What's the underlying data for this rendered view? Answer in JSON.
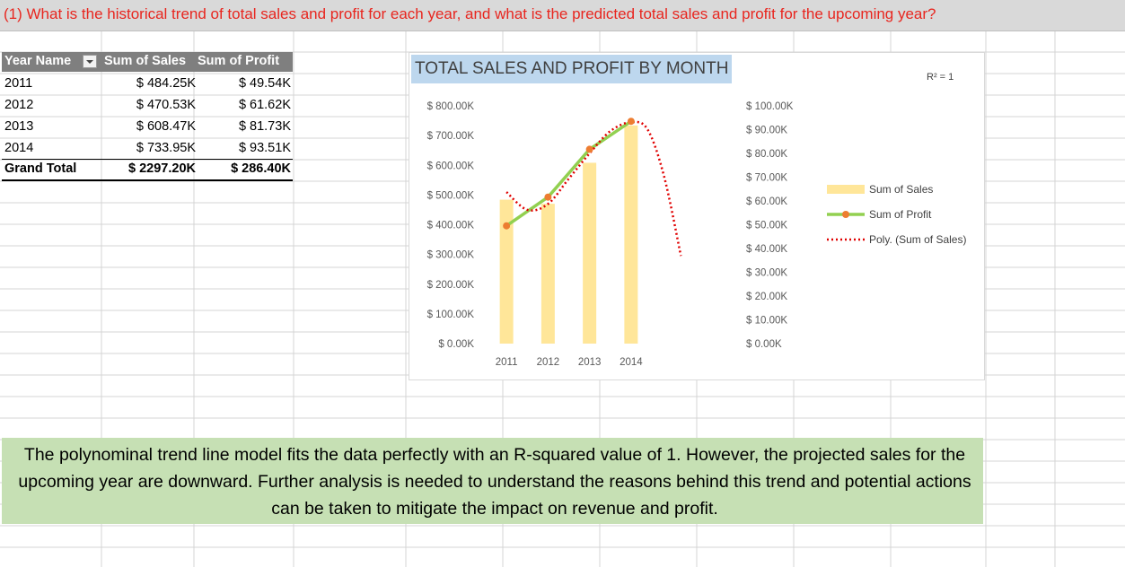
{
  "question": "(1) What is the historical trend of total sales and profit for each year, and what is the predicted total sales and profit for the upcoming year?",
  "pivot": {
    "headers": [
      "Year Name",
      "Sum of Sales",
      "Sum of Profit"
    ],
    "rows": [
      {
        "year": "2011",
        "sales": "$ 484.25K",
        "profit": "$ 49.54K"
      },
      {
        "year": "2012",
        "sales": "$ 470.53K",
        "profit": "$ 61.62K"
      },
      {
        "year": "2013",
        "sales": "$ 608.47K",
        "profit": "$ 81.73K"
      },
      {
        "year": "2014",
        "sales": "$ 733.95K",
        "profit": "$ 93.51K"
      }
    ],
    "total": {
      "label": "Grand Total",
      "sales": "$ 2297.20K",
      "profit": "$ 286.40K"
    }
  },
  "chart_data": {
    "type": "bar",
    "title": "TOTAL SALES AND PROFIT BY MONTH",
    "categories": [
      "2011",
      "2012",
      "2013",
      "2014"
    ],
    "series": [
      {
        "name": "Sum of Sales",
        "type": "bar",
        "axis": "left",
        "values": [
          484.25,
          470.53,
          608.47,
          733.95
        ],
        "color": "#ffe699"
      },
      {
        "name": "Sum of Profit",
        "type": "line",
        "axis": "right",
        "values": [
          49.54,
          61.62,
          81.73,
          93.51
        ],
        "color": "#92d050",
        "marker_color": "#ed7d31"
      },
      {
        "name": "Poly. (Sum of Sales)",
        "type": "trendline",
        "axis": "left",
        "color": "#e00000",
        "points": [
          [
            1,
            510
          ],
          [
            1.5,
            450
          ],
          [
            2,
            470
          ],
          [
            2.5,
            555
          ],
          [
            3,
            640
          ],
          [
            3.5,
            715
          ],
          [
            4,
            745
          ],
          [
            4.4,
            720
          ],
          [
            4.8,
            560
          ],
          [
            5.2,
            295
          ]
        ]
      }
    ],
    "y_left": {
      "ticks": [
        "$ 0.00K",
        "$ 100.00K",
        "$ 200.00K",
        "$ 300.00K",
        "$ 400.00K",
        "$ 500.00K",
        "$ 600.00K",
        "$ 700.00K",
        "$ 800.00K"
      ],
      "range": [
        0,
        800
      ]
    },
    "y_right": {
      "ticks": [
        "$ 0.00K",
        "$ 10.00K",
        "$ 20.00K",
        "$ 30.00K",
        "$ 40.00K",
        "$ 50.00K",
        "$ 60.00K",
        "$ 70.00K",
        "$ 80.00K",
        "$ 90.00K",
        "$ 100.00K"
      ],
      "range": [
        0,
        100
      ]
    },
    "r_squared_label": "R² = 1",
    "legend": "right",
    "grid": false
  },
  "note": "The polynominal trend line model fits the data perfectly with an R-squared value of 1. However, the projected sales for the upcoming year are downward. Further analysis is needed to understand the reasons behind this trend and potential actions can be taken to mitigate the impact on revenue and profit.",
  "colors": {
    "question": "#e8261f",
    "title_bg": "#bdd7ee",
    "note_bg": "#c6e0b4",
    "pivot_header_bg": "#7f7f7f"
  }
}
